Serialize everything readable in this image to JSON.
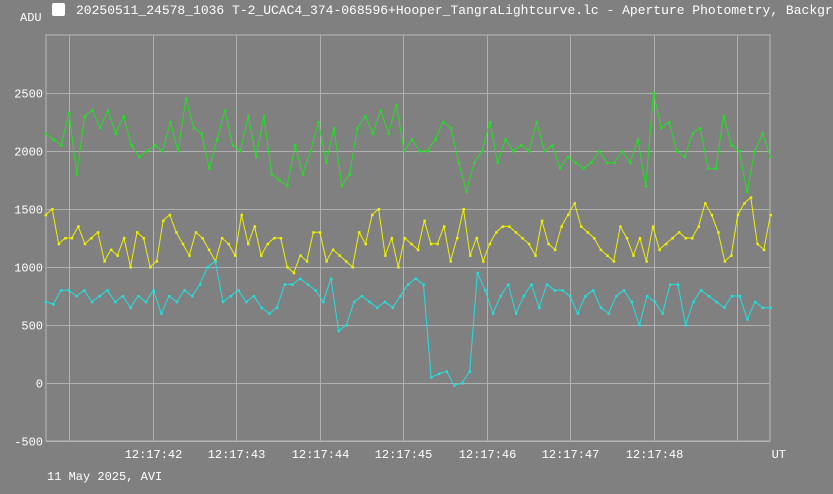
{
  "window": {
    "title": "20250511_24578_1036 T-2_UCAC4_374-068596+Hooper_TangraLightcurve.lc - Aperture Photometry, Backgr",
    "footer": "11 May 2025, AVI"
  },
  "chart_data": {
    "type": "line",
    "title": "20250511_24578_1036 T-2_UCAC4_374-068596+Hooper_TangraLightcurve.lc - Aperture Photometry, Backgr",
    "ylabel": "ADU",
    "xlabel": "UT",
    "ylim": [
      -500,
      3000
    ],
    "xlim": [
      40.72,
      49.4
    ],
    "grid": true,
    "yticks": [
      -500,
      0,
      500,
      1000,
      1500,
      2000,
      2500
    ],
    "ytick_labels": [
      "-500",
      "0",
      "500",
      "1000",
      "1500",
      "2000",
      "2500"
    ],
    "xticks": [
      41,
      42,
      43,
      44,
      45,
      46,
      47,
      48,
      49
    ],
    "xtick_labels": [
      "",
      "12:17:42",
      "12:17:43",
      "12:17:44",
      "12:17:45",
      "12:17:46",
      "12:17:47",
      "12:17:48",
      ""
    ],
    "series": [
      {
        "name": "green",
        "color": "#22e022",
        "values": [
          2150,
          2100,
          2050,
          2330,
          1800,
          2300,
          2350,
          2200,
          2350,
          2150,
          2300,
          2050,
          1950,
          2000,
          2050,
          2000,
          2250,
          2000,
          2450,
          2200,
          2150,
          1850,
          2100,
          2350,
          2050,
          2000,
          2300,
          1950,
          2300,
          1800,
          1750,
          1700,
          2050,
          1800,
          2000,
          2250,
          1900,
          2200,
          1700,
          1800,
          2200,
          2300,
          2150,
          2350,
          2150,
          2400,
          2000,
          2100,
          2000,
          2000,
          2100,
          2250,
          2200,
          1900,
          1650,
          1900,
          2000,
          2250,
          1900,
          2100,
          2000,
          2050,
          2000,
          2250,
          2000,
          2050,
          1850,
          1950,
          1900,
          1850,
          1900,
          2000,
          1900,
          1900,
          2000,
          1900,
          2100,
          1700,
          2500,
          2200,
          2250,
          2000,
          1950,
          2150,
          2200,
          1850,
          1850,
          2300,
          2050,
          2000,
          1650,
          2000,
          2150,
          1950
        ]
      },
      {
        "name": "yellow",
        "color": "#f0f000",
        "values": [
          1450,
          1500,
          1200,
          1250,
          1250,
          1350,
          1200,
          1250,
          1300,
          1050,
          1150,
          1100,
          1250,
          1000,
          1300,
          1250,
          1000,
          1050,
          1400,
          1450,
          1300,
          1200,
          1100,
          1300,
          1250,
          1150,
          1050,
          1250,
          1200,
          1100,
          1450,
          1200,
          1350,
          1100,
          1200,
          1250,
          1250,
          1000,
          950,
          1100,
          1050,
          1300,
          1300,
          1050,
          1150,
          1100,
          1050,
          1000,
          1300,
          1200,
          1450,
          1500,
          1100,
          1250,
          1000,
          1250,
          1200,
          1150,
          1400,
          1200,
          1200,
          1350,
          1050,
          1250,
          1500,
          1100,
          1250,
          1050,
          1200,
          1300,
          1350,
          1350,
          1300,
          1250,
          1200,
          1100,
          1400,
          1200,
          1150,
          1350,
          1450,
          1550,
          1350,
          1300,
          1250,
          1150,
          1100,
          1050,
          1350,
          1250,
          1100,
          1250,
          1050,
          1350,
          1150,
          1200,
          1250,
          1300,
          1250,
          1250,
          1350,
          1550,
          1450,
          1300,
          1050,
          1100,
          1450,
          1550,
          1600,
          1200,
          1150,
          1450
        ]
      },
      {
        "name": "cyan",
        "color": "#20e0e0",
        "values": [
          700,
          680,
          800,
          800,
          750,
          800,
          700,
          750,
          800,
          700,
          750,
          650,
          750,
          700,
          800,
          600,
          750,
          700,
          800,
          750,
          850,
          1000,
          1050,
          700,
          750,
          800,
          700,
          750,
          650,
          600,
          650,
          850,
          850,
          900,
          850,
          800,
          700,
          900,
          450,
          500,
          700,
          750,
          700,
          650,
          700,
          650,
          750,
          850,
          900,
          850,
          50,
          80,
          100,
          -20,
          0,
          100,
          950,
          800,
          600,
          750,
          850,
          600,
          750,
          850,
          650,
          850,
          800,
          800,
          750,
          600,
          750,
          800,
          650,
          600,
          750,
          800,
          700,
          500,
          750,
          700,
          600,
          850,
          850,
          500,
          700,
          800,
          750,
          700,
          650,
          750,
          750,
          550,
          700,
          650,
          650
        ]
      }
    ]
  }
}
